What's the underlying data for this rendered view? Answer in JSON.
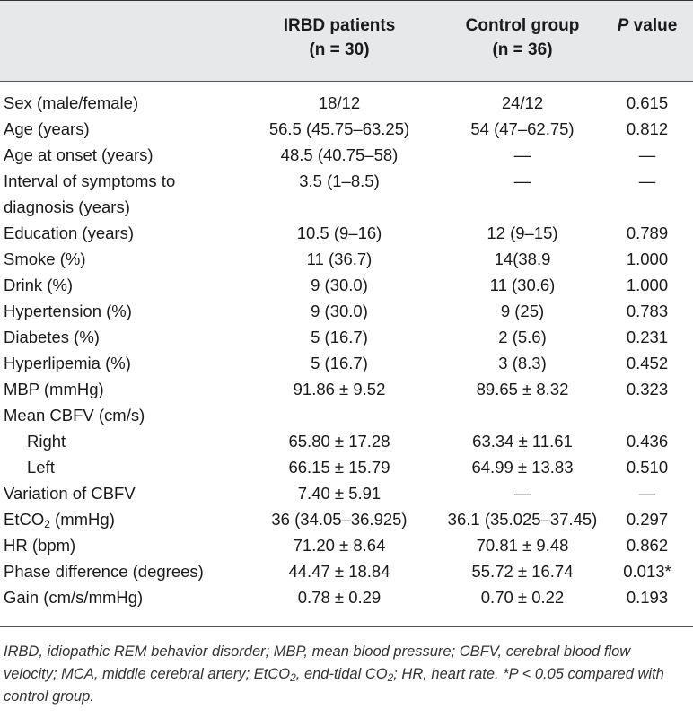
{
  "header": {
    "irbd_line1": "IRBD patients",
    "irbd_line2": "(n = 30)",
    "control_line1": "Control group",
    "control_line2": "(n = 36)",
    "p_italic": "P",
    "p_rest": " value"
  },
  "rows": [
    {
      "label": "Sex (male/female)",
      "irbd": "18/12",
      "control": "24/12",
      "p": "0.615"
    },
    {
      "label": "Age (years)",
      "irbd": "56.5 (45.75–63.25)",
      "control": "54 (47–62.75)",
      "p": "0.812"
    },
    {
      "label": "Age at onset (years)",
      "irbd": "48.5 (40.75–58)",
      "control": "—",
      "p": "—"
    },
    {
      "label_line1": "Interval of symptoms to",
      "label_line2": "diagnosis (years)",
      "irbd": "3.5 (1–8.5)",
      "control": "—",
      "p": "—"
    },
    {
      "label": "Education (years)",
      "irbd": "10.5 (9–16)",
      "control": "12 (9–15)",
      "p": "0.789"
    },
    {
      "label": "Smoke (%)",
      "irbd": "11 (36.7)",
      "control": "14(38.9",
      "p": "1.000"
    },
    {
      "label": "Drink (%)",
      "irbd": "9 (30.0)",
      "control": "11 (30.6)",
      "p": "1.000"
    },
    {
      "label": "Hypertension (%)",
      "irbd": "9 (30.0)",
      "control": "9 (25)",
      "p": "0.783"
    },
    {
      "label": "Diabetes (%)",
      "irbd": "5 (16.7)",
      "control": "2 (5.6)",
      "p": "0.231"
    },
    {
      "label": "Hyperlipemia (%)",
      "irbd": "5 (16.7)",
      "control": "3 (8.3)",
      "p": "0.452"
    },
    {
      "label": "MBP (mmHg)",
      "irbd": "91.86 ± 9.52",
      "control": "89.65 ± 8.32",
      "p": "0.323"
    },
    {
      "label": "Mean CBFV (cm/s)",
      "irbd": "",
      "control": "",
      "p": ""
    },
    {
      "label": "Right",
      "irbd": "65.80 ± 17.28",
      "control": "63.34 ± 11.61",
      "p": "0.436"
    },
    {
      "label": "Left",
      "irbd": "66.15 ± 15.79",
      "control": "64.99 ± 13.83",
      "p": "0.510"
    },
    {
      "label": "Variation of CBFV",
      "irbd": "7.40 ± 5.91",
      "control": "—",
      "p": "—"
    },
    {
      "label_main": "EtCO",
      "label_sub": "2",
      "label_unit": " (mmHg)",
      "irbd": "36 (34.05–36.925)",
      "control": "36.1 (35.025–37.45)",
      "p": "0.297"
    },
    {
      "label": "HR (bpm)",
      "irbd": "71.20 ± 8.64",
      "control": "70.81 ± 9.48",
      "p": "0.862"
    },
    {
      "label": "Phase difference (degrees)",
      "irbd": "44.47 ± 18.84",
      "control": "55.72 ± 16.74",
      "p": "0.013*"
    },
    {
      "label": "Gain (cm/s/mmHg)",
      "irbd": "0.78 ± 0.29",
      "control": "0.70 ± 0.22",
      "p": "0.193"
    }
  ],
  "footnote": {
    "part1": "IRBD, idiopathic REM behavior disorder; MBP, mean blood pressure; CBFV, cerebral blood flow velocity; MCA, middle cerebral artery; EtCO",
    "sub1": "2",
    "part2": ", end-tidal CO",
    "sub2": "2",
    "part3": "; HR, heart rate. *P < 0.05 compared with control group."
  }
}
